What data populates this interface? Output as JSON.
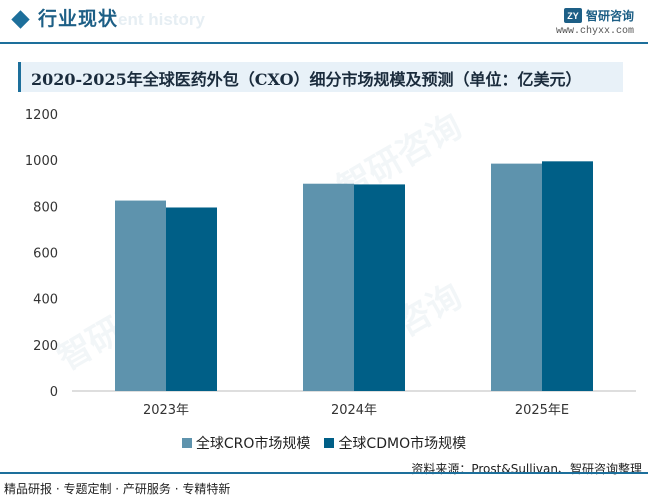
{
  "header": {
    "section_title": "行业现状",
    "ghost_text": "ent history",
    "brand_logo": "ZY",
    "brand_name": "智研咨询",
    "brand_url": "www.chyxx.com"
  },
  "watermark": "智研咨询",
  "colors": {
    "cro": "#5e93ad",
    "cdmo": "#005f87",
    "accent": "#1d6f9b"
  },
  "chart_data": {
    "type": "bar",
    "title": "2020-2025年全球医药外包（CXO）细分市场规模及预测（单位：亿美元）",
    "categories": [
      "2023年",
      "2024年",
      "2025年E"
    ],
    "series": [
      {
        "name": "全球CRO市场规模",
        "values": [
          825,
          898,
          985
        ]
      },
      {
        "name": "全球CDMO市场规模",
        "values": [
          795,
          895,
          995
        ]
      }
    ],
    "yticks": [
      0,
      200,
      400,
      600,
      800,
      1000,
      1200
    ],
    "ylim": [
      0,
      1200
    ],
    "xlabel": "",
    "ylabel": "",
    "legend": "bottom"
  },
  "footer": {
    "source": "资料来源：Prost&Sullivan、智研咨询整理",
    "slogan": "精品研报 · 专题定制 · 产研服务 · 专精特新"
  }
}
